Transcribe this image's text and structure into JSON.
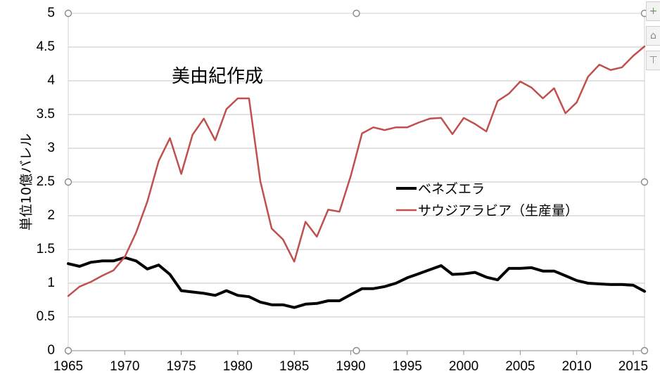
{
  "chart_data": {
    "type": "line",
    "title": "",
    "annotation": "美由紀作成",
    "ylabel": "単位10億バレル",
    "xlabel": "",
    "xlim": [
      1965,
      2016
    ],
    "ylim": [
      0,
      5
    ],
    "xticks": [
      "1965",
      "1970",
      "1975",
      "1980",
      "1985",
      "1990",
      "1995",
      "2000",
      "2005",
      "2010",
      "2015"
    ],
    "yticks": [
      "0",
      "0.5",
      "1",
      "1.5",
      "2",
      "2.5",
      "3",
      "3.5",
      "4",
      "4.5",
      "5"
    ],
    "grid": true,
    "legend_position": "center-right",
    "x": [
      1965,
      1966,
      1967,
      1968,
      1969,
      1970,
      1971,
      1972,
      1973,
      1974,
      1975,
      1976,
      1977,
      1978,
      1979,
      1980,
      1981,
      1982,
      1983,
      1984,
      1985,
      1986,
      1987,
      1988,
      1989,
      1990,
      1991,
      1992,
      1993,
      1994,
      1995,
      1996,
      1997,
      1998,
      1999,
      2000,
      2001,
      2002,
      2003,
      2004,
      2005,
      2006,
      2007,
      2008,
      2009,
      2010,
      2011,
      2012,
      2013,
      2014,
      2015,
      2016
    ],
    "series": [
      {
        "name": "ベネズエラ",
        "color": "#000000",
        "values": [
          1.29,
          1.25,
          1.31,
          1.33,
          1.33,
          1.38,
          1.33,
          1.21,
          1.27,
          1.13,
          0.89,
          0.87,
          0.85,
          0.82,
          0.89,
          0.82,
          0.8,
          0.72,
          0.68,
          0.68,
          0.64,
          0.69,
          0.7,
          0.74,
          0.74,
          0.83,
          0.92,
          0.92,
          0.95,
          1.0,
          1.08,
          1.14,
          1.2,
          1.26,
          1.13,
          1.14,
          1.16,
          1.09,
          1.05,
          1.22,
          1.22,
          1.23,
          1.18,
          1.18,
          1.11,
          1.04,
          1.0,
          0.99,
          0.98,
          0.98,
          0.97,
          0.88
        ]
      },
      {
        "name": "サウジアラビア（生産量）",
        "color": "#c0504d",
        "values": [
          0.81,
          0.95,
          1.02,
          1.11,
          1.19,
          1.39,
          1.75,
          2.21,
          2.81,
          3.15,
          2.62,
          3.2,
          3.44,
          3.12,
          3.58,
          3.74,
          3.74,
          2.51,
          1.81,
          1.65,
          1.32,
          1.91,
          1.69,
          2.09,
          2.06,
          2.59,
          3.22,
          3.31,
          3.27,
          3.31,
          3.31,
          3.38,
          3.44,
          3.45,
          3.21,
          3.45,
          3.36,
          3.25,
          3.7,
          3.81,
          3.99,
          3.9,
          3.74,
          3.89,
          3.52,
          3.68,
          4.06,
          4.24,
          4.16,
          4.2,
          4.37,
          4.51
        ]
      }
    ]
  },
  "ui": {
    "side_buttons": [
      "+",
      "⌂",
      "⊤"
    ]
  }
}
